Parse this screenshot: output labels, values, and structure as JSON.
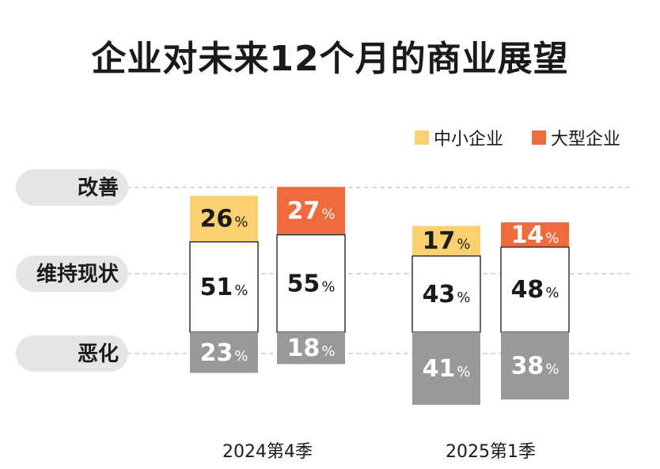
{
  "chart_data": {
    "type": "bar",
    "stacked": true,
    "title": "企业对未来12个月的商业展望",
    "groups": [
      "2024第4季",
      "2025第1季"
    ],
    "rows": [
      "改善",
      "维持现状",
      "恶化"
    ],
    "series": [
      {
        "name": "中小企业",
        "color": "#fbd070",
        "values": {
          "2024第4季": {
            "改善": 26,
            "维持现状": 51,
            "恶化": 23
          },
          "2025第1季": {
            "改善": 17,
            "维持现状": 43,
            "恶化": 41
          }
        }
      },
      {
        "name": "大型企业",
        "color": "#ef6a3c",
        "values": {
          "2024第4季": {
            "改善": 27,
            "维持现状": 55,
            "恶化": 18
          },
          "2025第1季": {
            "改善": 14,
            "维持现状": 48,
            "恶化": 38
          }
        }
      }
    ],
    "colors": {
      "improve_small": "#fbd070",
      "improve_large": "#ef6a3c",
      "neutral": "#ffffff",
      "worse": "#999999",
      "row_label_bg": "#e5e5e5",
      "border": "#333333"
    },
    "unit": "%",
    "legend_position": "top-right"
  }
}
